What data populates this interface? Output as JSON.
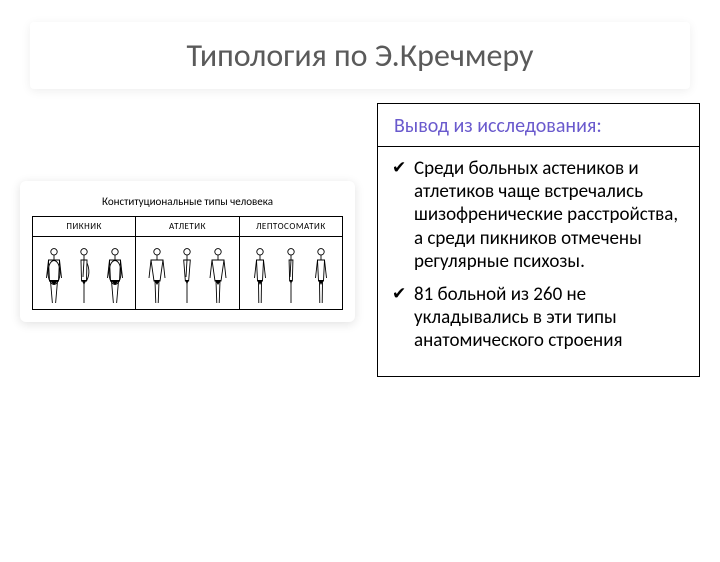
{
  "title": "Типология по Э.Кречмеру",
  "title_color": "#5a5a5a",
  "subheader": "Вывод из исследования:",
  "subheader_color": "#6a5acd",
  "figure": {
    "caption": "Конституциональные типы человека",
    "columns": [
      {
        "label": "ПИКНИК",
        "body_variant": "pyknic"
      },
      {
        "label": "АТЛЕТИК",
        "body_variant": "athletic"
      },
      {
        "label": "ЛЕПТОСОМАТИК",
        "body_variant": "lepto"
      }
    ]
  },
  "bullets": [
    "Среди больных астеников и атлетиков чаще встречались шизофренические расстройства, а среди пикников отмечены регулярные психозы.",
    "81 больной из 260 не укладывались в эти типы анатомического строения"
  ],
  "body_shapes": {
    "pyknic": {
      "torso_w": 9,
      "shoulder_w": 11,
      "hip_w": 9,
      "belly": true
    },
    "athletic": {
      "torso_w": 8,
      "shoulder_w": 12,
      "hip_w": 6,
      "belly": false
    },
    "lepto": {
      "torso_w": 5,
      "shoulder_w": 7,
      "hip_w": 5,
      "belly": false
    }
  }
}
